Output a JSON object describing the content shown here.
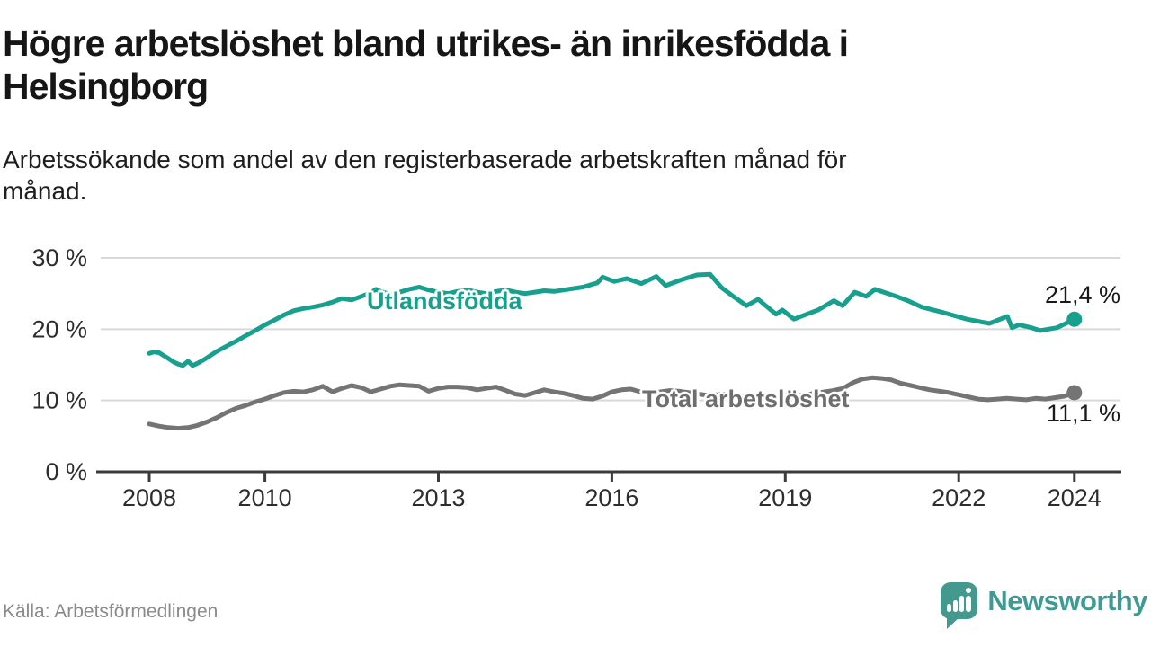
{
  "header": {
    "title_lines": [
      "Högre arbetslöshet bland utrikes- än inrikesfödda i",
      "Helsingborg"
    ],
    "subtitle_lines": [
      "Arbetssökande som andel av den registerbaserade arbetskraften månad för",
      "månad."
    ]
  },
  "footer": {
    "source": "Källa: Arbetsförmedlingen",
    "logo_text": "Newsworthy",
    "logo_color": "#3e9a93"
  },
  "chart_data": {
    "type": "line",
    "x_axis": {
      "ticks": [
        2008,
        2010,
        2013,
        2016,
        2019,
        2022,
        2024
      ],
      "tick_labels": [
        "2008",
        "2010",
        "2013",
        "2016",
        "2019",
        "2022",
        "2024"
      ],
      "range": [
        2007.1,
        2024.8
      ]
    },
    "y_axis": {
      "unit": "%",
      "ticks": [
        0,
        10,
        20,
        30
      ],
      "tick_labels": [
        "0 %",
        "10 %",
        "20 %",
        "30 %"
      ],
      "range": [
        0,
        30
      ]
    },
    "grid_color": "#d9d9d9",
    "axis_color": "#3b3b3b",
    "series": [
      {
        "name": "Utlandsfödda",
        "color": "#18a08f",
        "end_label": "21,4 %",
        "end_value": 21.4,
        "points": [
          [
            2008.0,
            16.6
          ],
          [
            2008.08,
            16.8
          ],
          [
            2008.17,
            16.7
          ],
          [
            2008.25,
            16.3
          ],
          [
            2008.33,
            15.9
          ],
          [
            2008.42,
            15.4
          ],
          [
            2008.5,
            15.1
          ],
          [
            2008.58,
            14.9
          ],
          [
            2008.67,
            15.5
          ],
          [
            2008.75,
            14.9
          ],
          [
            2008.83,
            15.2
          ],
          [
            2008.92,
            15.6
          ],
          [
            2009.0,
            16.0
          ],
          [
            2009.17,
            16.9
          ],
          [
            2009.33,
            17.6
          ],
          [
            2009.5,
            18.3
          ],
          [
            2009.67,
            19.1
          ],
          [
            2009.83,
            19.8
          ],
          [
            2010.0,
            20.6
          ],
          [
            2010.17,
            21.3
          ],
          [
            2010.33,
            22.0
          ],
          [
            2010.5,
            22.6
          ],
          [
            2010.67,
            22.9
          ],
          [
            2010.83,
            23.1
          ],
          [
            2011.0,
            23.4
          ],
          [
            2011.17,
            23.8
          ],
          [
            2011.33,
            24.3
          ],
          [
            2011.5,
            24.1
          ],
          [
            2011.67,
            24.6
          ],
          [
            2011.83,
            25.1
          ],
          [
            2011.92,
            25.6
          ],
          [
            2012.0,
            25.3
          ],
          [
            2012.17,
            24.9
          ],
          [
            2012.33,
            25.2
          ],
          [
            2012.5,
            25.6
          ],
          [
            2012.67,
            25.9
          ],
          [
            2012.83,
            25.5
          ],
          [
            2013.0,
            25.2
          ],
          [
            2013.17,
            25.0
          ],
          [
            2013.33,
            25.3
          ],
          [
            2013.5,
            25.5
          ],
          [
            2013.67,
            25.2
          ],
          [
            2013.83,
            25.0
          ],
          [
            2014.0,
            25.3
          ],
          [
            2014.17,
            25.5
          ],
          [
            2014.33,
            25.2
          ],
          [
            2014.5,
            25.0
          ],
          [
            2014.67,
            25.2
          ],
          [
            2014.83,
            25.4
          ],
          [
            2015.0,
            25.3
          ],
          [
            2015.25,
            25.6
          ],
          [
            2015.5,
            25.9
          ],
          [
            2015.75,
            26.5
          ],
          [
            2015.84,
            27.3
          ],
          [
            2016.04,
            26.7
          ],
          [
            2016.26,
            27.1
          ],
          [
            2016.51,
            26.4
          ],
          [
            2016.77,
            27.4
          ],
          [
            2016.93,
            26.1
          ],
          [
            2017.19,
            26.9
          ],
          [
            2017.47,
            27.6
          ],
          [
            2017.7,
            27.7
          ],
          [
            2017.9,
            25.8
          ],
          [
            2018.1,
            24.6
          ],
          [
            2018.33,
            23.3
          ],
          [
            2018.53,
            24.2
          ],
          [
            2018.75,
            22.7
          ],
          [
            2018.84,
            22.1
          ],
          [
            2018.95,
            22.7
          ],
          [
            2019.15,
            21.4
          ],
          [
            2019.37,
            22.1
          ],
          [
            2019.57,
            22.7
          ],
          [
            2019.84,
            24.0
          ],
          [
            2019.99,
            23.3
          ],
          [
            2020.2,
            25.2
          ],
          [
            2020.4,
            24.6
          ],
          [
            2020.55,
            25.6
          ],
          [
            2020.7,
            25.2
          ],
          [
            2020.92,
            24.6
          ],
          [
            2021.12,
            24.0
          ],
          [
            2021.36,
            23.1
          ],
          [
            2021.75,
            22.3
          ],
          [
            2022.14,
            21.4
          ],
          [
            2022.53,
            20.8
          ],
          [
            2022.84,
            21.8
          ],
          [
            2022.92,
            20.2
          ],
          [
            2023.04,
            20.6
          ],
          [
            2023.26,
            20.2
          ],
          [
            2023.41,
            19.8
          ],
          [
            2023.7,
            20.2
          ],
          [
            2023.85,
            20.8
          ],
          [
            2024.0,
            21.4
          ]
        ]
      },
      {
        "name": "Total arbetslöshet",
        "color": "#747474",
        "end_label": "11,1 %",
        "end_value": 11.1,
        "points": [
          [
            2008.0,
            6.7
          ],
          [
            2008.17,
            6.4
          ],
          [
            2008.33,
            6.2
          ],
          [
            2008.5,
            6.1
          ],
          [
            2008.67,
            6.2
          ],
          [
            2008.83,
            6.5
          ],
          [
            2009.0,
            7.0
          ],
          [
            2009.17,
            7.6
          ],
          [
            2009.33,
            8.3
          ],
          [
            2009.5,
            8.9
          ],
          [
            2009.67,
            9.3
          ],
          [
            2009.83,
            9.8
          ],
          [
            2010.0,
            10.2
          ],
          [
            2010.17,
            10.7
          ],
          [
            2010.33,
            11.1
          ],
          [
            2010.5,
            11.3
          ],
          [
            2010.67,
            11.2
          ],
          [
            2010.83,
            11.5
          ],
          [
            2011.0,
            12.0
          ],
          [
            2011.17,
            11.2
          ],
          [
            2011.33,
            11.7
          ],
          [
            2011.5,
            12.1
          ],
          [
            2011.67,
            11.8
          ],
          [
            2011.83,
            11.2
          ],
          [
            2012.0,
            11.6
          ],
          [
            2012.17,
            12.0
          ],
          [
            2012.33,
            12.2
          ],
          [
            2012.5,
            12.1
          ],
          [
            2012.67,
            12.0
          ],
          [
            2012.83,
            11.3
          ],
          [
            2013.0,
            11.7
          ],
          [
            2013.17,
            11.9
          ],
          [
            2013.33,
            11.9
          ],
          [
            2013.5,
            11.8
          ],
          [
            2013.67,
            11.5
          ],
          [
            2013.83,
            11.7
          ],
          [
            2014.0,
            11.9
          ],
          [
            2014.17,
            11.4
          ],
          [
            2014.33,
            10.9
          ],
          [
            2014.5,
            10.7
          ],
          [
            2014.67,
            11.1
          ],
          [
            2014.83,
            11.5
          ],
          [
            2015.0,
            11.2
          ],
          [
            2015.17,
            11.0
          ],
          [
            2015.33,
            10.7
          ],
          [
            2015.5,
            10.3
          ],
          [
            2015.67,
            10.2
          ],
          [
            2015.83,
            10.6
          ],
          [
            2016.0,
            11.2
          ],
          [
            2016.17,
            11.5
          ],
          [
            2016.33,
            11.6
          ],
          [
            2016.5,
            11.2
          ],
          [
            2016.67,
            11.0
          ],
          [
            2016.83,
            11.2
          ],
          [
            2017.0,
            11.4
          ],
          [
            2017.17,
            11.3
          ],
          [
            2017.33,
            11.1
          ],
          [
            2017.5,
            10.9
          ],
          [
            2017.67,
            10.7
          ],
          [
            2017.83,
            10.8
          ],
          [
            2018.0,
            10.9
          ],
          [
            2018.17,
            10.7
          ],
          [
            2018.33,
            10.5
          ],
          [
            2018.5,
            10.4
          ],
          [
            2018.67,
            10.5
          ],
          [
            2018.83,
            10.6
          ],
          [
            2019.0,
            10.7
          ],
          [
            2019.17,
            10.6
          ],
          [
            2019.33,
            10.8
          ],
          [
            2019.5,
            11.0
          ],
          [
            2019.67,
            11.2
          ],
          [
            2019.83,
            11.4
          ],
          [
            2020.0,
            11.7
          ],
          [
            2020.17,
            12.5
          ],
          [
            2020.33,
            13.0
          ],
          [
            2020.5,
            13.2
          ],
          [
            2020.67,
            13.1
          ],
          [
            2020.83,
            12.9
          ],
          [
            2021.0,
            12.4
          ],
          [
            2021.17,
            12.1
          ],
          [
            2021.33,
            11.8
          ],
          [
            2021.5,
            11.5
          ],
          [
            2021.67,
            11.3
          ],
          [
            2021.83,
            11.1
          ],
          [
            2022.0,
            10.8
          ],
          [
            2022.17,
            10.5
          ],
          [
            2022.33,
            10.2
          ],
          [
            2022.5,
            10.1
          ],
          [
            2022.67,
            10.2
          ],
          [
            2022.83,
            10.3
          ],
          [
            2023.0,
            10.2
          ],
          [
            2023.17,
            10.1
          ],
          [
            2023.33,
            10.3
          ],
          [
            2023.5,
            10.2
          ],
          [
            2023.67,
            10.4
          ],
          [
            2023.83,
            10.6
          ],
          [
            2024.0,
            11.1
          ]
        ]
      }
    ]
  }
}
